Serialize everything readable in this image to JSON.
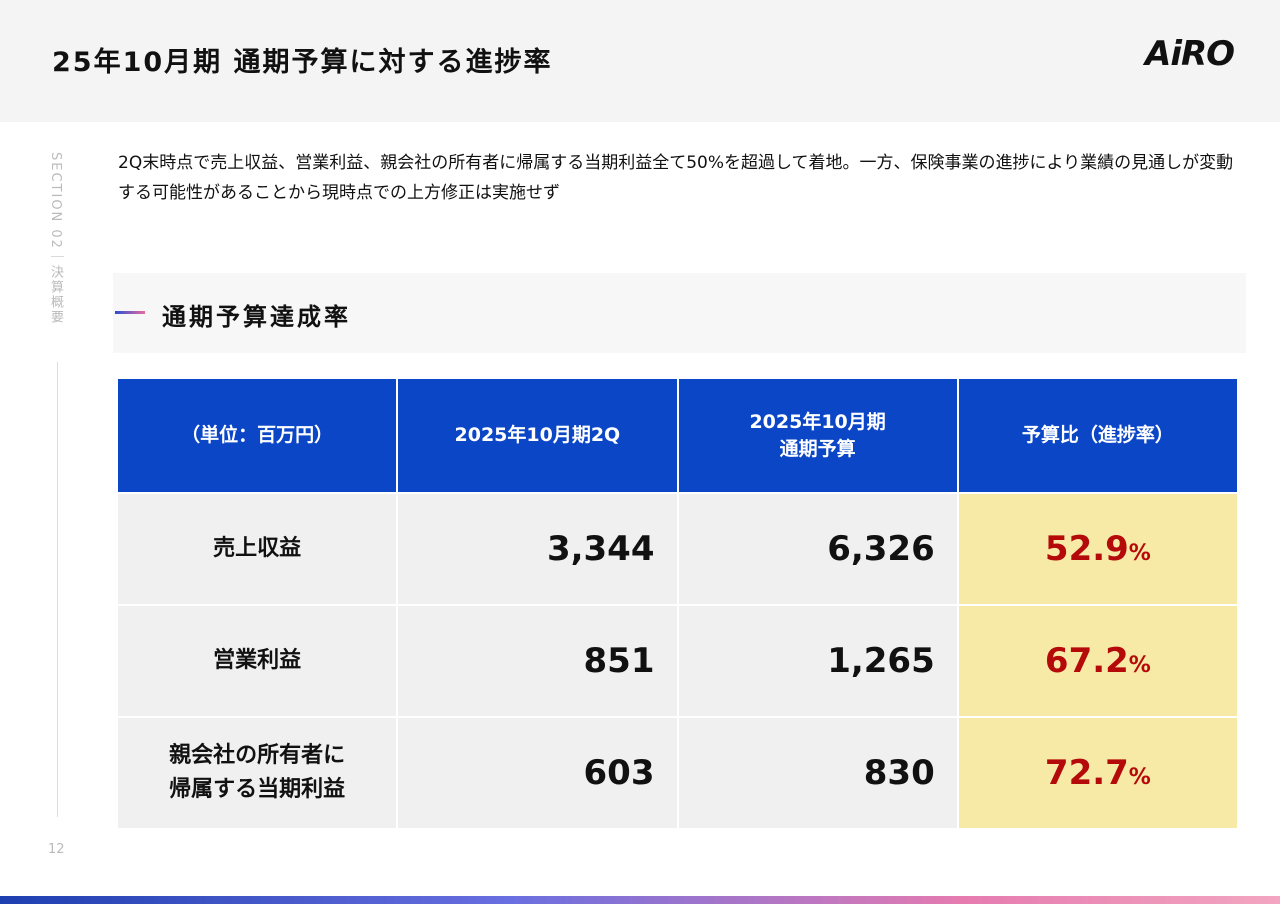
{
  "header": {
    "title": "25年10月期 通期予算に対する進捗率",
    "logo": "AiRO"
  },
  "sidebar": {
    "section": "SECTION 02｜決算概要",
    "page": "12"
  },
  "description": "2Q末時点で売上収益、営業利益、親会社の所有者に帰属する当期利益全て50%を超過して着地。一方、保険事業の進捗により業績の見通しが変動する可能性があることから現時点での上方修正は実施せず",
  "section_heading": "通期予算達成率",
  "table": {
    "headers": [
      "（単位：百万円）",
      "2025年10月期2Q",
      "2025年10月期\n通期予算",
      "予算比（進捗率）"
    ],
    "rows": [
      {
        "label": "売上収益",
        "q2": "3,344",
        "budget": "6,326",
        "ratio": "52.9",
        "unit": "%"
      },
      {
        "label": "営業利益",
        "q2": "851",
        "budget": "1,265",
        "ratio": "67.2",
        "unit": "%"
      },
      {
        "label": "親会社の所有者に\n帰属する当期利益",
        "q2": "603",
        "budget": "830",
        "ratio": "72.7",
        "unit": "%"
      }
    ]
  }
}
